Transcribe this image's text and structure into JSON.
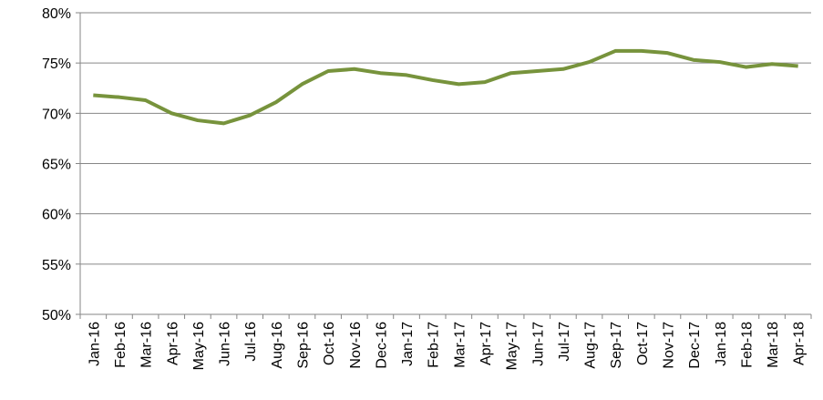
{
  "chart_data": {
    "type": "line",
    "categories": [
      "Jan-16",
      "Feb-16",
      "Mar-16",
      "Apr-16",
      "May-16",
      "Jun-16",
      "Jul-16",
      "Aug-16",
      "Sep-16",
      "Oct-16",
      "Nov-16",
      "Dec-16",
      "Jan-17",
      "Feb-17",
      "Mar-17",
      "Apr-17",
      "May-17",
      "Jun-17",
      "Jul-17",
      "Aug-17",
      "Sep-17",
      "Oct-17",
      "Nov-17",
      "Dec-17",
      "Jan-18",
      "Feb-18",
      "Mar-18",
      "Apr-18"
    ],
    "values": [
      71.8,
      71.6,
      71.3,
      70.0,
      69.3,
      69.0,
      69.8,
      71.1,
      72.9,
      74.2,
      74.4,
      74.0,
      73.8,
      73.3,
      72.9,
      73.1,
      74.0,
      74.2,
      74.4,
      75.1,
      76.2,
      76.2,
      76.0,
      75.3,
      75.1,
      74.6,
      74.9,
      74.7
    ],
    "color": "#77933c",
    "ylim": [
      50,
      80
    ],
    "yticks": [
      {
        "value": 50,
        "label": "50%"
      },
      {
        "value": 55,
        "label": "55%"
      },
      {
        "value": 60,
        "label": "60%"
      },
      {
        "value": 65,
        "label": "65%"
      },
      {
        "value": 70,
        "label": "70%"
      },
      {
        "value": 75,
        "label": "75%"
      },
      {
        "value": 80,
        "label": "80%"
      }
    ],
    "grid": true
  }
}
